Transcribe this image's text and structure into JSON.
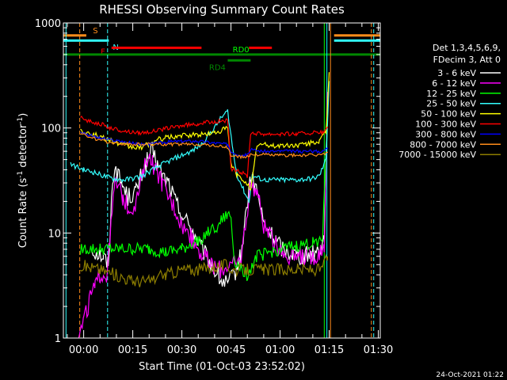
{
  "chart_data": {
    "type": "line",
    "title": "RHESSI Observing Summary Count Rates",
    "xlabel": "Start Time (01-Oct-03 23:52:02)",
    "ylabel_parts": [
      "Count Rate (s",
      "-1",
      " detector",
      "-1",
      ")"
    ],
    "yscale": "log",
    "ylim": [
      1,
      1000
    ],
    "xlim_minutes": [
      -6.2,
      90.6
    ],
    "y_ticks": [
      {
        "v": 1,
        "label": "1"
      },
      {
        "v": 10,
        "label": "10"
      },
      {
        "v": 100,
        "label": "100"
      },
      {
        "v": 1000,
        "label": "1000"
      }
    ],
    "x_ticks": [
      {
        "v": 0,
        "label": "00:00"
      },
      {
        "v": 15,
        "label": "00:15"
      },
      {
        "v": 30,
        "label": "00:30"
      },
      {
        "v": 45,
        "label": "00:45"
      },
      {
        "v": 60,
        "label": "01:00"
      },
      {
        "v": 75,
        "label": "01:15"
      },
      {
        "v": 90,
        "label": "01:30"
      }
    ],
    "legend_header": [
      "Det 1,3,4,5,6,9,",
      "FDecim 3, Att 0"
    ],
    "legend_placement": "right",
    "timestamp": "24-Oct-2021 01:22",
    "flags": [
      {
        "label": "S",
        "color": "#ff8c1a",
        "level": 760,
        "segments": [
          [
            -6.2,
            0.8
          ],
          [
            76.5,
            90.6
          ]
        ]
      },
      {
        "label": "N",
        "color": "#33ffff",
        "level": 680,
        "segments": [
          [
            -6.2,
            7.7
          ],
          [
            76.5,
            90.6
          ]
        ]
      },
      {
        "label": "F",
        "color": "#ff0000",
        "level": 580,
        "segments": [
          [
            8.5,
            36
          ],
          [
            50.5,
            57.5
          ]
        ]
      },
      {
        "label": "RD0",
        "color": "#00ff00",
        "level": 500,
        "segments": [
          [
            -6.2,
            90.6
          ]
        ],
        "dark_color": "#008800"
      },
      {
        "label": "RD4",
        "color": "#008800",
        "level": 440,
        "segments": [
          [
            44,
            51
          ]
        ]
      }
    ],
    "vlines": [
      {
        "x": -1.2,
        "color": "#ff8c1a",
        "dashed": true
      },
      {
        "x": 7.3,
        "color": "#33ffff",
        "dashed": true
      },
      {
        "x": -5.4,
        "color": "#33ffff",
        "dashed": false
      },
      {
        "x": 73.5,
        "color": "#00ff00",
        "dashed": false
      },
      {
        "x": 74.3,
        "color": "#00ffff",
        "dashed": false
      },
      {
        "x": 75.4,
        "color": "#ff8c1a",
        "dashed": false
      },
      {
        "x": 87.9,
        "color": "#ff8c1a",
        "dashed": true
      },
      {
        "x": 88.6,
        "color": "#33ffff",
        "dashed": true
      }
    ],
    "series": [
      {
        "name": "3 - 6 keV",
        "color": "#ffffff",
        "x": [
          2.5,
          6,
          7.5,
          8.5,
          9.5,
          10.5,
          12,
          13.5,
          16,
          18,
          19.5,
          21,
          22.5,
          24,
          26,
          28,
          30,
          33,
          36,
          39,
          42,
          44,
          46,
          48,
          51,
          53,
          55,
          58,
          61,
          64,
          67,
          70,
          72,
          73.5,
          74.5
        ],
        "y": [
          7,
          6,
          5,
          20,
          48,
          35,
          28,
          22,
          25,
          38,
          50,
          60,
          45,
          35,
          30,
          20,
          15,
          11,
          7,
          5,
          3.5,
          3.2,
          4,
          6,
          35,
          25,
          12,
          9,
          7,
          6.5,
          6,
          6.5,
          7,
          9,
          200
        ]
      },
      {
        "name": "6 - 12 keV",
        "color": "#ff00ff",
        "x": [
          -1.5,
          0,
          1,
          2,
          3.5,
          5,
          7,
          8,
          9.5,
          10.5,
          12,
          14,
          16,
          18,
          19.5,
          21,
          22.5,
          24,
          26,
          28,
          30,
          33,
          36,
          39,
          42,
          44,
          46,
          48,
          51,
          53,
          55,
          58,
          61,
          64,
          67,
          70,
          72,
          73.5,
          74.5
        ],
        "y": [
          1,
          1.5,
          1.8,
          2.5,
          3,
          4,
          4,
          8,
          30,
          28,
          22,
          17,
          20,
          35,
          55,
          45,
          35,
          30,
          22,
          17,
          12,
          9,
          6.5,
          5,
          4.5,
          5,
          5,
          5.5,
          30,
          25,
          12,
          8,
          6.5,
          6,
          6,
          6,
          6.5,
          8,
          220
        ]
      },
      {
        "name": "12 - 25 keV",
        "color": "#00ff00",
        "x": [
          -1,
          5,
          10,
          15,
          20,
          25,
          30,
          35,
          38,
          40,
          42,
          44,
          45,
          46,
          50,
          53,
          60,
          65,
          70,
          73,
          74.5
        ],
        "y": [
          7,
          7,
          7,
          7,
          7,
          6.5,
          7,
          8.5,
          10,
          11,
          13,
          15,
          14,
          5.5,
          4,
          6,
          7,
          7.5,
          8,
          9,
          140
        ]
      },
      {
        "name": "25 - 50 keV",
        "color": "#33ffff",
        "x": [
          -4,
          0,
          3,
          6,
          9,
          12,
          15,
          18,
          21,
          24,
          27,
          30,
          33,
          36,
          38,
          40,
          42,
          44,
          46,
          47,
          49,
          50.5,
          51.5,
          55,
          60,
          65,
          70,
          72,
          74,
          75
        ],
        "y": [
          45,
          40,
          38,
          35,
          33,
          32,
          33,
          35,
          40,
          45,
          50,
          55,
          60,
          70,
          85,
          100,
          125,
          145,
          50,
          35,
          25,
          20,
          35,
          32,
          32,
          32,
          33,
          35,
          50,
          280
        ]
      },
      {
        "name": "50 - 100 keV",
        "color": "#ffff00",
        "x": [
          -1,
          2,
          5,
          8,
          11,
          14,
          17,
          20,
          23,
          26,
          30,
          35,
          40,
          44,
          45,
          47,
          50,
          51,
          53,
          58,
          63,
          68,
          72,
          74,
          75
        ],
        "y": [
          95,
          90,
          82,
          76,
          70,
          66,
          65,
          70,
          78,
          82,
          84,
          86,
          90,
          100,
          45,
          35,
          30,
          25,
          70,
          68,
          68,
          70,
          75,
          90,
          340
        ]
      },
      {
        "name": "100 - 300 keV",
        "color": "#ff0000",
        "x": [
          -1,
          2,
          5,
          8,
          11,
          14,
          17,
          20,
          23,
          26,
          30,
          35,
          40,
          44,
          45,
          48,
          50,
          51,
          55,
          60,
          65,
          70,
          73,
          74.5
        ],
        "y": [
          125,
          115,
          110,
          100,
          95,
          92,
          90,
          92,
          95,
          100,
          105,
          110,
          115,
          118,
          40,
          38,
          35,
          90,
          88,
          88,
          88,
          90,
          90,
          100
        ]
      },
      {
        "name": "300 - 800 keV",
        "color": "#0000ff",
        "x": [
          -1,
          2,
          5,
          8,
          11,
          14,
          17,
          20,
          23,
          26,
          30,
          35,
          40,
          44,
          45,
          48,
          50,
          51,
          55,
          60,
          65,
          70,
          73,
          74.5
        ],
        "y": [
          92,
          85,
          80,
          77,
          75,
          72,
          70,
          70,
          72,
          74,
          75,
          75,
          72,
          70,
          60,
          55,
          55,
          62,
          60,
          60,
          60,
          60,
          60,
          65
        ]
      },
      {
        "name": "800 - 7000 keV",
        "color": "#ff8c1a",
        "x": [
          -1,
          2,
          5,
          8,
          11,
          14,
          17,
          20,
          23,
          26,
          30,
          35,
          40,
          44,
          45,
          48,
          50,
          51,
          55,
          60,
          65,
          70,
          73,
          74.5
        ],
        "y": [
          88,
          82,
          76,
          73,
          71,
          70,
          70,
          70,
          70,
          70,
          70,
          70,
          68,
          65,
          55,
          53,
          53,
          56,
          56,
          55,
          55,
          55,
          56,
          58
        ]
      },
      {
        "name": "7000 - 15000 keV",
        "color": "#8c7d00",
        "x": [
          -1,
          5,
          10,
          15,
          20,
          25,
          30,
          35,
          40,
          44,
          45,
          50,
          55,
          60,
          65,
          70,
          73,
          74.5
        ],
        "y": [
          5,
          4.5,
          4,
          3.5,
          3.5,
          4,
          4.5,
          4.5,
          4.8,
          5,
          4.5,
          4.5,
          4.5,
          4.5,
          4.5,
          4.5,
          4.5,
          6
        ]
      }
    ]
  }
}
